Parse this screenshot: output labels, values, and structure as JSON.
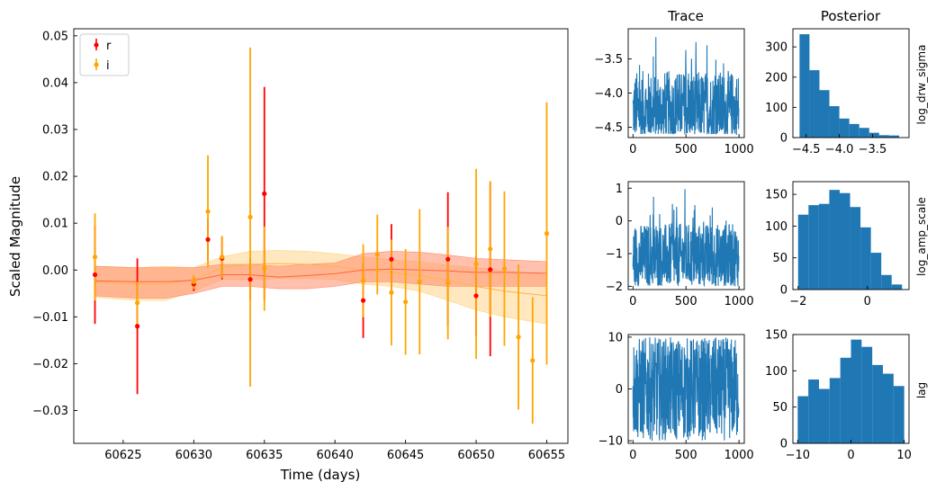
{
  "chart_data": [
    {
      "type": "scatter",
      "xlabel": "Time (days)",
      "ylabel": "Scaled Magnitude",
      "xlim": [
        60621.5,
        60656.5
      ],
      "ylim": [
        -0.037,
        0.0515
      ],
      "xticks": [
        60625,
        60630,
        60635,
        60640,
        60645,
        60650,
        60655
      ],
      "yticks": [
        -0.03,
        -0.02,
        -0.01,
        0.0,
        0.01,
        0.02,
        0.03,
        0.04,
        0.05
      ],
      "ytick_labels": [
        "−0.03",
        "−0.02",
        "−0.01",
        "0.00",
        "0.01",
        "0.02",
        "0.03",
        "0.04",
        "0.05"
      ],
      "legend": {
        "placement": "top-left",
        "entries": [
          "r",
          "i"
        ]
      },
      "series": [
        {
          "name": "r",
          "color": "#ff0000",
          "x": [
            60623,
            60626,
            60630,
            60631,
            60632,
            60634,
            60635,
            60642,
            60644,
            60648,
            60650,
            60651
          ],
          "y": [
            -0.001,
            -0.012,
            -0.003,
            0.0065,
            0.0025,
            -0.002,
            0.0163,
            -0.0065,
            0.0023,
            0.0023,
            -0.0055,
            0.0001
          ],
          "err": [
            0.0105,
            0.0145,
            0.0015,
            0.0045,
            0.0045,
            0.0045,
            0.0228,
            0.008,
            0.0075,
            0.0143,
            0.0085,
            0.0185
          ]
        },
        {
          "name": "i",
          "color": "#ffa500",
          "x": [
            60623,
            60626,
            60630,
            60631,
            60632,
            60634,
            60635,
            60642,
            60643,
            60644,
            60645,
            60646,
            60648,
            60650,
            60651,
            60652,
            60653,
            60654,
            60655
          ],
          "y": [
            0.0028,
            -0.007,
            -0.0025,
            0.0125,
            0.0028,
            0.0113,
            0.0003,
            -0.0023,
            0.0033,
            -0.0048,
            -0.0068,
            -0.0025,
            -0.0028,
            0.0013,
            0.0045,
            0.0003,
            -0.0143,
            -0.0193,
            0.0078
          ],
          "err": [
            0.0093,
            0.0045,
            0.0015,
            0.012,
            0.0045,
            0.0362,
            0.009,
            0.0078,
            0.0085,
            0.0113,
            0.0113,
            0.0155,
            0.012,
            0.0203,
            0.0145,
            0.0165,
            0.0155,
            0.0135,
            0.028
          ]
        }
      ],
      "models": [
        {
          "color": "#ff8c69",
          "x": [
            60623,
            60626,
            60628,
            60630,
            60632,
            60634,
            60636,
            60638,
            60640,
            60642,
            60644,
            60646,
            60648,
            60650,
            60652,
            60655
          ],
          "mean": [
            -0.0023,
            -0.0025,
            -0.0025,
            -0.0022,
            -0.001,
            -0.001,
            -0.0015,
            -0.0012,
            -0.0008,
            0.0,
            0.0002,
            0.0,
            -0.0002,
            -0.0005,
            -0.0005,
            -0.0007
          ],
          "upper": [
            0.0008,
            0.0005,
            0.0005,
            0.0005,
            0.0012,
            0.0012,
            0.0008,
            0.0012,
            0.0015,
            0.0035,
            0.004,
            0.0038,
            0.0032,
            0.0025,
            0.0022,
            0.0018
          ],
          "lower": [
            -0.0055,
            -0.006,
            -0.006,
            -0.005,
            -0.0035,
            -0.0035,
            -0.004,
            -0.004,
            -0.0035,
            -0.0025,
            -0.0025,
            -0.003,
            -0.0035,
            -0.0035,
            -0.0035,
            -0.0035
          ]
        },
        {
          "color": "#ffd27f",
          "x": [
            60623,
            60626,
            60628,
            60630,
            60632,
            60634,
            60636,
            60638,
            60640,
            60642,
            60644,
            60646,
            60648,
            60650,
            60652,
            60655
          ],
          "mean": [
            -0.0025,
            -0.003,
            -0.003,
            -0.002,
            0.0005,
            0.0012,
            0.0014,
            0.0012,
            0.0008,
            0.0,
            -0.0005,
            -0.0012,
            -0.0022,
            -0.0035,
            -0.0045,
            -0.0055
          ],
          "upper": [
            0.0008,
            0.0005,
            0.0008,
            0.0005,
            0.0028,
            0.004,
            0.0042,
            0.004,
            0.0035,
            0.0028,
            0.0022,
            0.0018,
            0.001,
            0.0005,
            -0.0002,
            -0.001
          ],
          "lower": [
            -0.0058,
            -0.0065,
            -0.0065,
            -0.0045,
            -0.002,
            -0.002,
            -0.0018,
            -0.0018,
            -0.002,
            -0.003,
            -0.0035,
            -0.0045,
            -0.0065,
            -0.0085,
            -0.01,
            -0.0115
          ]
        }
      ]
    },
    {
      "type": "line",
      "title": "Trace",
      "parameter": "log_drw_sigma",
      "xlim": [
        -45,
        1050
      ],
      "ylim": [
        -4.65,
        -3.06
      ],
      "xticks": [
        0,
        500,
        1000
      ],
      "yticks": [
        -4.5,
        -4.0,
        -3.5
      ],
      "ytick_labels": [
        "−4.5",
        "−4.0",
        "−3.5"
      ],
      "samples": 1000,
      "range": [
        -4.6,
        -3.1
      ],
      "center": -4.25
    },
    {
      "type": "line",
      "parameter": "log_amp_scale",
      "xlim": [
        -45,
        1050
      ],
      "ylim": [
        -2.1,
        1.2
      ],
      "xticks": [
        0,
        500,
        1000
      ],
      "yticks": [
        -2,
        -1,
        0,
        1
      ],
      "ytick_labels": [
        "−2",
        "−1",
        "0",
        "1"
      ],
      "samples": 1000,
      "range": [
        -2.0,
        1.1
      ],
      "center": -0.7
    },
    {
      "type": "line",
      "parameter": "lag",
      "xlim": [
        -45,
        1050
      ],
      "ylim": [
        -10.5,
        10.5
      ],
      "xticks": [
        0,
        500,
        1000
      ],
      "yticks": [
        -10,
        0,
        10
      ],
      "ytick_labels": [
        "−10",
        "0",
        "10"
      ],
      "samples": 1000,
      "range": [
        -10,
        10
      ],
      "center": 0
    },
    {
      "type": "bar",
      "title": "Posterior",
      "ylabel": "log_drw_sigma",
      "xlim": [
        -4.7,
        -2.95
      ],
      "ylim": [
        0,
        360
      ],
      "xticks": [
        -4.5,
        -4.0,
        -3.5
      ],
      "xtick_labels": [
        "−4.5",
        "−4.0",
        "−3.5"
      ],
      "yticks": [
        0,
        100,
        200,
        300
      ],
      "bin_edges": [
        -4.6,
        -4.45,
        -4.3,
        -4.15,
        -4.0,
        -3.85,
        -3.7,
        -3.55,
        -3.4,
        -3.25,
        -3.1
      ],
      "counts": [
        342,
        223,
        157,
        104,
        63,
        45,
        32,
        16,
        8,
        7
      ]
    },
    {
      "type": "bar",
      "ylabel": "log_amp_scale",
      "xlim": [
        -2.15,
        1.2
      ],
      "ylim": [
        0,
        170
      ],
      "xticks": [
        -2,
        0
      ],
      "xtick_labels": [
        "−2",
        "0"
      ],
      "yticks": [
        0,
        50,
        100,
        150
      ],
      "bin_edges": [
        -2.0,
        -1.7,
        -1.4,
        -1.1,
        -0.8,
        -0.5,
        -0.2,
        0.1,
        0.4,
        0.7,
        1.0
      ],
      "counts": [
        118,
        133,
        135,
        157,
        152,
        130,
        98,
        58,
        23,
        8
      ]
    },
    {
      "type": "bar",
      "ylabel": "lag",
      "xlim": [
        -10.9,
        10.9
      ],
      "ylim": [
        0,
        150
      ],
      "xticks": [
        -10,
        0,
        10
      ],
      "xtick_labels": [
        "−10",
        "0",
        "10"
      ],
      "yticks": [
        0,
        50,
        100,
        150
      ],
      "bin_edges": [
        -10,
        -8,
        -6,
        -4,
        -2,
        0,
        2,
        4,
        6,
        8,
        10
      ],
      "counts": [
        65,
        88,
        75,
        90,
        118,
        143,
        133,
        108,
        96,
        79
      ]
    }
  ]
}
